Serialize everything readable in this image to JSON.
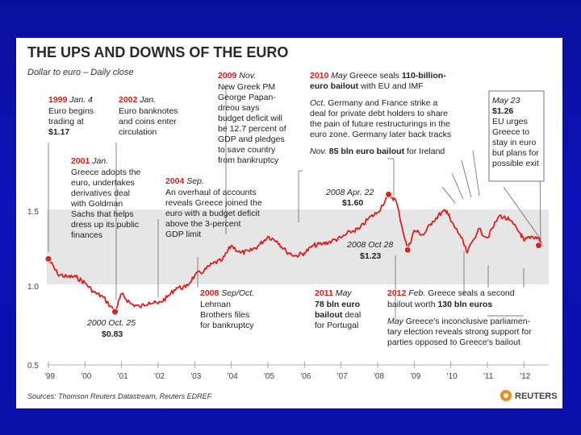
{
  "chart_data": {
    "type": "line",
    "title": "THE UPS AND DOWNS OF THE EURO",
    "subtitle": "Dollar to euro – Daily close",
    "xlabel": "",
    "ylabel": "",
    "ylim": [
      0.5,
      1.7
    ],
    "yticks": [
      "1.5",
      "1.0",
      "0.5"
    ],
    "xticks": [
      "'99",
      "'00",
      "'01",
      "'02",
      "'03",
      "'04",
      "'05",
      "'06",
      "'07",
      "'08",
      "'09",
      "'10",
      "'11",
      "'12"
    ],
    "grid": false,
    "series": [
      {
        "name": "Dollar to euro",
        "x": [
          1999.0,
          1999.25,
          1999.5,
          1999.75,
          2000.0,
          2000.25,
          2000.5,
          2000.82,
          2001.0,
          2001.25,
          2001.5,
          2001.75,
          2002.0,
          2002.25,
          2002.5,
          2002.75,
          2003.0,
          2003.25,
          2003.5,
          2003.75,
          2004.0,
          2004.25,
          2004.5,
          2004.75,
          2005.0,
          2005.25,
          2005.5,
          2005.75,
          2006.0,
          2006.25,
          2006.5,
          2006.75,
          2007.0,
          2007.25,
          2007.5,
          2007.75,
          2008.0,
          2008.3,
          2008.5,
          2008.82,
          2009.0,
          2009.25,
          2009.5,
          2009.75,
          2009.9,
          2010.0,
          2010.25,
          2010.45,
          2010.75,
          2011.0,
          2011.33,
          2011.6,
          2011.9,
          2012.0,
          2012.2,
          2012.4,
          2012.5
        ],
        "y": [
          1.17,
          1.07,
          1.05,
          1.05,
          1.01,
          0.95,
          0.92,
          0.83,
          0.94,
          0.88,
          0.86,
          0.89,
          0.88,
          0.92,
          0.98,
          0.98,
          1.06,
          1.09,
          1.14,
          1.16,
          1.26,
          1.21,
          1.22,
          1.26,
          1.32,
          1.29,
          1.22,
          1.19,
          1.21,
          1.26,
          1.27,
          1.29,
          1.31,
          1.35,
          1.37,
          1.44,
          1.48,
          1.6,
          1.56,
          1.23,
          1.36,
          1.33,
          1.42,
          1.48,
          1.49,
          1.42,
          1.33,
          1.21,
          1.37,
          1.31,
          1.46,
          1.43,
          1.34,
          1.29,
          1.32,
          1.31,
          1.26
        ]
      }
    ],
    "highlighted_points": [
      {
        "label": "1999 Jan. 4",
        "x": 1999.0,
        "y": 1.17
      },
      {
        "label": "2000 Oct. 25",
        "x": 2000.82,
        "y": 0.83
      },
      {
        "label": "2008 Apr. 22",
        "x": 2008.3,
        "y": 1.6
      },
      {
        "label": "2008 Oct 28",
        "x": 2008.82,
        "y": 1.23
      },
      {
        "label": "May 23",
        "x": 2012.4,
        "y": 1.26
      }
    ],
    "shaded_band": [
      1.0,
      1.5
    ],
    "annotations": {
      "a1999": {
        "date": "1999",
        "month": "Jan. 4",
        "lines": [
          "Euro begins",
          "trading at"
        ],
        "value": "$1.17"
      },
      "a2002": {
        "date": "2002",
        "month": "Jan.",
        "lines": [
          "Euro banknotes",
          "and coins enter",
          "circulation"
        ]
      },
      "a2001": {
        "date": "2001",
        "month": "Jan.",
        "lines": [
          "Greece adopts the",
          "euro, undertakes",
          "derivatives deal",
          "with Goldman",
          "Sachs that helps",
          "dress up its public",
          "finances"
        ]
      },
      "a2009": {
        "date": "2009",
        "month": "Nov.",
        "lines": [
          "New Greek PM",
          "George Papan-",
          "dreou says",
          "budget deficit will",
          "be 12.7 percent of",
          "GDP and pledges",
          "to save country",
          "from bankruptcy"
        ]
      },
      "a2004": {
        "date": "2004",
        "month": "Sep.",
        "lines": [
          "An overhaul of accounts",
          "reveals Greece joined the",
          "euro with a budget deficit",
          "above the 3-percent",
          "GDP limit"
        ]
      },
      "a2010may": {
        "date": "2010",
        "month": "May",
        "text": "Greece seals",
        "bold": "110-billion-",
        "lines": [
          "euro bailout"
        ],
        "tail": "with EU and IMF"
      },
      "a2010oct": {
        "month": "Oct.",
        "lines": [
          "Germany and France strike a",
          "deal for private debt holders to share",
          "the pain of future restructurings in the",
          "euro zone. Germany later back tracks"
        ]
      },
      "a2010nov": {
        "month": "Nov.",
        "bold": "85 bln euro bailout",
        "tail": "for Ireland"
      },
      "a2012may23": {
        "month": "May 23",
        "value": "$1.26",
        "lines": [
          "EU urges",
          "Greece to",
          "stay in euro",
          "but plans for",
          "possible exit"
        ]
      },
      "p2008apr": {
        "label": "2008 Apr. 22",
        "value": "$1.60"
      },
      "p2008oct": {
        "label": "2008 Oct 28",
        "value": "$1.23"
      },
      "p2000oct": {
        "label": "2000 Oct. 25",
        "value": "$0.83"
      },
      "a2008sep": {
        "date": "2008",
        "month": "Sep/Oct.",
        "lines": [
          "Lehman",
          "Brothers files",
          "for bankruptcy"
        ]
      },
      "a2011may": {
        "date": "2011",
        "month": "May",
        "bold_lines": [
          "78 bln euro",
          "bailout"
        ],
        "lines": [
          "deal",
          "for Portugal"
        ]
      },
      "a2012feb": {
        "date": "2012",
        "month": "Feb.",
        "text": "Greece seals a second",
        "bold": "130 bln euros",
        "pre_bold": "bailout worth"
      },
      "a2012may": {
        "month": "May",
        "lines": [
          "Greece's inconclusive parliamen-",
          "tary election reveals strong support for",
          "parties opposed to Greece's bailout"
        ]
      }
    },
    "source": "Sources: Thomson Reuters Datastream, Reuters EDREF",
    "brand": "REUTERS"
  },
  "colors": {
    "line": "#e01f1f",
    "band": "#e6e6e6",
    "text_red": "#d21f1f",
    "background": "#0b12b8"
  }
}
